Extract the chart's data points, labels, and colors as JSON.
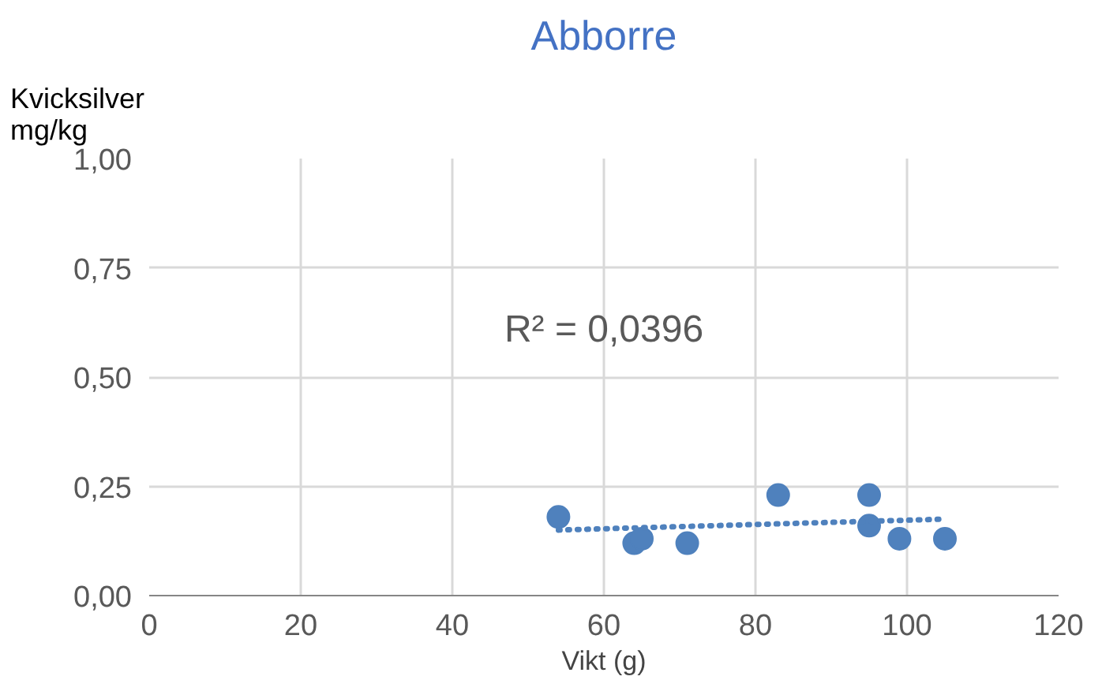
{
  "chart_data": {
    "type": "scatter",
    "title": "Abborre",
    "xlabel": "Vikt (g)",
    "ylabel": "Kvicksilver\nmg/kg",
    "series": [
      {
        "color": "#4f81bd",
        "marker": "circle",
        "x": [
          54,
          64,
          65,
          71,
          83,
          95,
          95,
          99,
          105
        ],
        "values": [
          0.18,
          0.12,
          0.13,
          0.12,
          0.23,
          0.23,
          0.16,
          0.13,
          0.13
        ]
      },
      {
        "type": "line",
        "color": "#4f81bd",
        "line_style": "dotted",
        "x": [
          54,
          105
        ],
        "values": [
          0.15,
          0.175
        ]
      }
    ],
    "annotations": [
      "R² = 0,0396"
    ],
    "xlim": [
      0,
      120
    ],
    "xticks": [
      0,
      20,
      40,
      60,
      80,
      100,
      120
    ],
    "ylim": [
      0,
      1
    ],
    "yticks": [
      {
        "value": 0,
        "label": "0,00"
      },
      {
        "value": 0.25,
        "label": "0,25"
      },
      {
        "value": 0.5,
        "label": "0,50"
      },
      {
        "value": 0.75,
        "label": "0,75"
      },
      {
        "value": 1,
        "label": "1,00"
      }
    ],
    "grid": true
  }
}
